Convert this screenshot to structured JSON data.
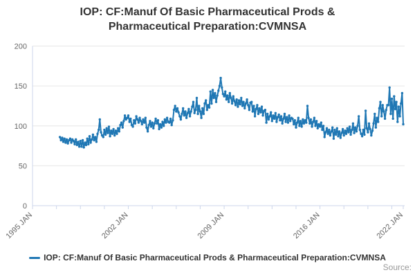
{
  "title": {
    "line1": "IOP: CF:Manuf Of Basic Pharmaceutical Prods &",
    "line2": "Pharmaceutical Preparation:CVMNSA"
  },
  "legend": {
    "label": "IOP: CF:Manuf Of Basic Pharmaceutical Prods & Pharmaceutical Preparation:CVMNSA"
  },
  "credits": {
    "label": "Source:"
  },
  "colors": {
    "series": "#1f77b4",
    "grid": "#e6e6e6",
    "axis": "#ccd6eb",
    "axis_label": "#666666",
    "title_text": "#333333",
    "source_text": "#999999"
  },
  "chart_data": {
    "type": "line",
    "title": "IOP: CF:Manuf Of Basic Pharmaceutical Prods & Pharmaceutical Preparation:CVMNSA",
    "grid": "horizontal",
    "legend_position": "bottom",
    "y_ticks": [
      0,
      50,
      100,
      150,
      200
    ],
    "ylim": [
      0,
      200
    ],
    "x_axis": {
      "min_year": 1995,
      "max_year": 2022.1667,
      "minor_tick_start": 1995,
      "minor_tick_step_years": 1.75,
      "minor_tick_count": 16,
      "end_tick_year": 2022.0833,
      "labeled_ticks": [
        {
          "year": 1995.0,
          "label": "1995 JAN"
        },
        {
          "year": 2002.0,
          "label": "2002 JAN"
        },
        {
          "year": 2009.0,
          "label": "2009 JAN"
        },
        {
          "year": 2016.0,
          "label": "2016 JAN"
        },
        {
          "year": 2022.0833,
          "label": "2022 JAN"
        }
      ]
    },
    "series": [
      {
        "name": "IOP: CF:Manuf Of Basic Pharmaceutical Prods & Pharmaceutical Preparation:CVMNSA",
        "start": "1997-01",
        "frequency": "monthly",
        "values": [
          86,
          82,
          85,
          80,
          84,
          79,
          83,
          78,
          82,
          84,
          79,
          83,
          81,
          77,
          83,
          76,
          80,
          74,
          81,
          74,
          82,
          73,
          79,
          76,
          84,
          77,
          87,
          79,
          83,
          89,
          82,
          86,
          80,
          90,
          95,
          108,
          92,
          88,
          86,
          95,
          89,
          97,
          91,
          99,
          87,
          94,
          90,
          96,
          88,
          94,
          90,
          97,
          93,
          101,
          104,
          98,
          106,
          113,
          108,
          110,
          113,
          105,
          109,
          101,
          99,
          107,
          103,
          112,
          108,
          104,
          110,
          106,
          102,
          108,
          104,
          110,
          98,
          93,
          101,
          106,
          99,
          104,
          97,
          103,
          109,
          103,
          107,
          96,
          102,
          98,
          105,
          100,
          108,
          104,
          110,
          105,
          104,
          109,
          101,
          107,
          120,
          125,
          118,
          122,
          117,
          112,
          108,
          115,
          122,
          113,
          118,
          110,
          116,
          121,
          112,
          118,
          124,
          130,
          116,
          120,
          135,
          115,
          125,
          118,
          110,
          122,
          115,
          128,
          132,
          120,
          126,
          123,
          143,
          128,
          145,
          135,
          141,
          130,
          138,
          144,
          150,
          160,
          148,
          140,
          137,
          143,
          133,
          138,
          130,
          141,
          135,
          128,
          137,
          131,
          126,
          133,
          124,
          132,
          127,
          135,
          125,
          130,
          122,
          128,
          133,
          126,
          120,
          129,
          130,
          118,
          125,
          112,
          121,
          126,
          115,
          122,
          117,
          124,
          113,
          119,
          120,
          104,
          115,
          108,
          112,
          117,
          106,
          113,
          109,
          116,
          105,
          111,
          114,
          107,
          112,
          103,
          109,
          115,
          105,
          111,
          104,
          113,
          106,
          110,
          109,
          102,
          107,
          98,
          104,
          110,
          100,
          106,
          99,
          108,
          103,
          107,
          104,
          125,
          110,
          103,
          108,
          99,
          105,
          110,
          100,
          106,
          97,
          102,
          99,
          104,
          95,
          100,
          86,
          92,
          97,
          90,
          95,
          88,
          93,
          98,
          84,
          95,
          89,
          97,
          87,
          93,
          85,
          91,
          96,
          88,
          94,
          90,
          97,
          92,
          99,
          89,
          95,
          103,
          91,
          98,
          93,
          100,
          112,
          95,
          90,
          87,
          95,
          89,
          119,
          97,
          92,
          103,
          96,
          88,
          94,
          103,
          115,
          98,
          110,
          105,
          122,
          130,
          112,
          126,
          118,
          109,
          120,
          126,
          126,
          148,
          115,
          134,
          109,
          137,
          121,
          130,
          105,
          124,
          112,
          128,
          141,
          102
        ]
      }
    ]
  }
}
